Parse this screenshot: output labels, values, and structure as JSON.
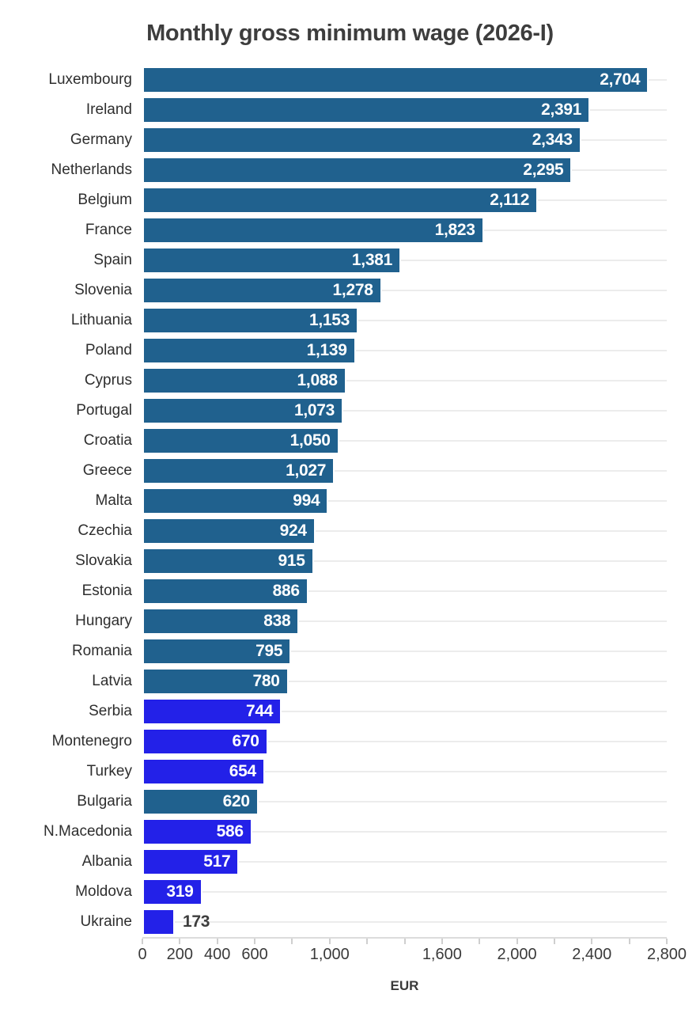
{
  "title": "Monthly gross minimum wage (2026-I)",
  "axis": {
    "unit_label": "EUR"
  },
  "colors": {
    "default_bar": "#20618e",
    "highlight_bar": "#2321e8",
    "inside_value_label": "#ffffff",
    "outside_value_label": "#3d3d3d",
    "gridline": "#ececec",
    "axis_line": "#dcdcdc",
    "text": "#2e2e2e",
    "title_text": "#3d3d3d"
  },
  "chart_data": {
    "type": "bar",
    "orientation": "horizontal",
    "title": "Monthly gross minimum wage (2026-I)",
    "xlabel": "EUR",
    "ylabel": "",
    "xlim": [
      0,
      2800
    ],
    "grid": "horizontal-per-category",
    "legend": "none",
    "x_tick_step": 200,
    "x_tick_labels": [
      {
        "value": 0,
        "label": "0"
      },
      {
        "value": 200,
        "label": "200"
      },
      {
        "value": 400,
        "label": "400"
      },
      {
        "value": 600,
        "label": "600"
      },
      {
        "value": 1000,
        "label": "1,000"
      },
      {
        "value": 1600,
        "label": "1,600"
      },
      {
        "value": 2000,
        "label": "2,000"
      },
      {
        "value": 2400,
        "label": "2,400"
      },
      {
        "value": 2800,
        "label": "2,800"
      }
    ],
    "items": [
      {
        "label": "Luxembourg",
        "value": 2704,
        "display": "2,704",
        "highlight": false,
        "label_inside": true
      },
      {
        "label": "Ireland",
        "value": 2391,
        "display": "2,391",
        "highlight": false,
        "label_inside": true
      },
      {
        "label": "Germany",
        "value": 2343,
        "display": "2,343",
        "highlight": false,
        "label_inside": true
      },
      {
        "label": "Netherlands",
        "value": 2295,
        "display": "2,295",
        "highlight": false,
        "label_inside": true
      },
      {
        "label": "Belgium",
        "value": 2112,
        "display": "2,112",
        "highlight": false,
        "label_inside": true
      },
      {
        "label": "France",
        "value": 1823,
        "display": "1,823",
        "highlight": false,
        "label_inside": true
      },
      {
        "label": "Spain",
        "value": 1381,
        "display": "1,381",
        "highlight": false,
        "label_inside": true
      },
      {
        "label": "Slovenia",
        "value": 1278,
        "display": "1,278",
        "highlight": false,
        "label_inside": true
      },
      {
        "label": "Lithuania",
        "value": 1153,
        "display": "1,153",
        "highlight": false,
        "label_inside": true
      },
      {
        "label": "Poland",
        "value": 1139,
        "display": "1,139",
        "highlight": false,
        "label_inside": true
      },
      {
        "label": "Cyprus",
        "value": 1088,
        "display": "1,088",
        "highlight": false,
        "label_inside": true
      },
      {
        "label": "Portugal",
        "value": 1073,
        "display": "1,073",
        "highlight": false,
        "label_inside": true
      },
      {
        "label": "Croatia",
        "value": 1050,
        "display": "1,050",
        "highlight": false,
        "label_inside": true
      },
      {
        "label": "Greece",
        "value": 1027,
        "display": "1,027",
        "highlight": false,
        "label_inside": true
      },
      {
        "label": "Malta",
        "value": 994,
        "display": "994",
        "highlight": false,
        "label_inside": true
      },
      {
        "label": "Czechia",
        "value": 924,
        "display": "924",
        "highlight": false,
        "label_inside": true
      },
      {
        "label": "Slovakia",
        "value": 915,
        "display": "915",
        "highlight": false,
        "label_inside": true
      },
      {
        "label": "Estonia",
        "value": 886,
        "display": "886",
        "highlight": false,
        "label_inside": true
      },
      {
        "label": "Hungary",
        "value": 838,
        "display": "838",
        "highlight": false,
        "label_inside": true
      },
      {
        "label": "Romania",
        "value": 795,
        "display": "795",
        "highlight": false,
        "label_inside": true
      },
      {
        "label": "Latvia",
        "value": 780,
        "display": "780",
        "highlight": false,
        "label_inside": true
      },
      {
        "label": "Serbia",
        "value": 744,
        "display": "744",
        "highlight": true,
        "label_inside": true
      },
      {
        "label": "Montenegro",
        "value": 670,
        "display": "670",
        "highlight": true,
        "label_inside": true
      },
      {
        "label": "Turkey",
        "value": 654,
        "display": "654",
        "highlight": true,
        "label_inside": true
      },
      {
        "label": "Bulgaria",
        "value": 620,
        "display": "620",
        "highlight": false,
        "label_inside": true
      },
      {
        "label": "N.Macedonia",
        "value": 586,
        "display": "586",
        "highlight": true,
        "label_inside": true
      },
      {
        "label": "Albania",
        "value": 517,
        "display": "517",
        "highlight": true,
        "label_inside": true
      },
      {
        "label": "Moldova",
        "value": 319,
        "display": "319",
        "highlight": true,
        "label_inside": true
      },
      {
        "label": "Ukraine",
        "value": 173,
        "display": "173",
        "highlight": true,
        "label_inside": false
      }
    ]
  }
}
